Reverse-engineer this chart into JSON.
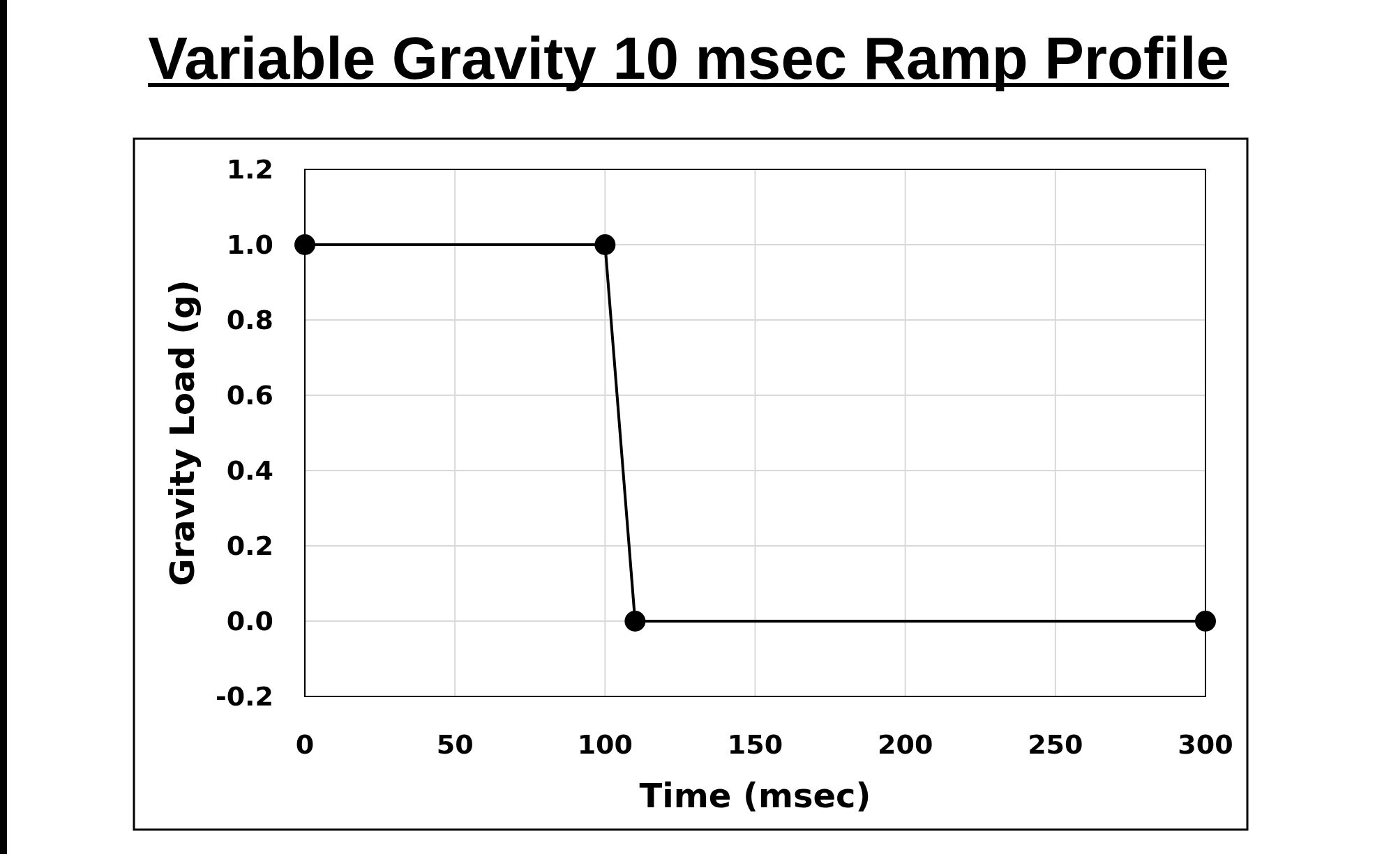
{
  "chart_data": {
    "type": "line",
    "title": "Variable Gravity 10 msec Ramp Profile",
    "xlabel": "Time (msec)",
    "ylabel": "Gravity Load (g)",
    "x": [
      0,
      100,
      110,
      300
    ],
    "series": [
      {
        "color": "#000000",
        "values": [
          1.0,
          1.0,
          0.0,
          0.0
        ]
      }
    ],
    "xlim": [
      0,
      300
    ],
    "xticks": [
      0,
      50,
      100,
      150,
      200,
      250,
      300
    ],
    "ylim": [
      -0.2,
      1.2
    ],
    "yticks": [
      {
        "value": -0.2,
        "label": "-0.2"
      },
      {
        "value": 0,
        "label": "0.0"
      },
      {
        "value": 0.2,
        "label": "0.2"
      },
      {
        "value": 0.4,
        "label": "0.4"
      },
      {
        "value": 0.6,
        "label": "0.6"
      },
      {
        "value": 0.8,
        "label": "0.8"
      },
      {
        "value": 1,
        "label": "1.0"
      },
      {
        "value": 1.2,
        "label": "1.2"
      }
    ],
    "grid": true,
    "marker": "circle",
    "line_style": "solid"
  }
}
